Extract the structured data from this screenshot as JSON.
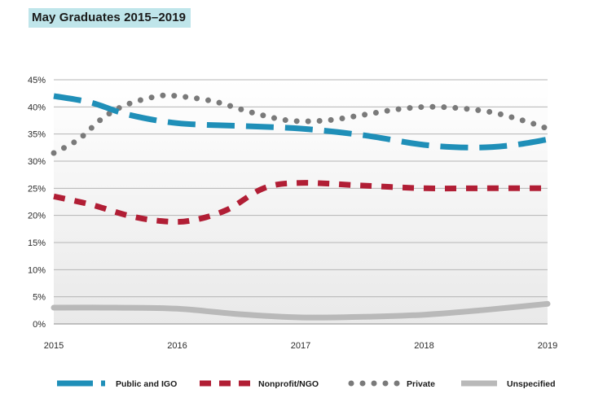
{
  "chart_data": {
    "type": "line",
    "title": "May Graduates 2015–2019",
    "xlabel": "",
    "ylabel": "",
    "x": [
      2015,
      2016,
      2017,
      2018,
      2019
    ],
    "x_tick_labels": [
      "2015",
      "2016",
      "2017",
      "2018",
      "2019"
    ],
    "y_tick_labels": [
      "0%",
      "5%",
      "10%",
      "15%",
      "20%",
      "25%",
      "30%",
      "35%",
      "40%",
      "45%"
    ],
    "ylim": [
      0,
      45
    ],
    "series": [
      {
        "name": "Public and IGO",
        "color": "#1f8fb8",
        "style": "long-dash",
        "x": [
          2015,
          2015.3,
          2015.6,
          2016,
          2016.5,
          2017,
          2017.5,
          2018,
          2018.4,
          2018.7,
          2019
        ],
        "values": [
          42,
          40.8,
          38.6,
          37,
          36.5,
          36,
          34.8,
          33,
          32.5,
          32.9,
          34
        ]
      },
      {
        "name": "Nonprofit/NGO",
        "color": "#b11e35",
        "style": "short-dash",
        "x": [
          2015,
          2015.3,
          2015.6,
          2015.85,
          2016.1,
          2016.4,
          2016.7,
          2017,
          2017.5,
          2018,
          2018.5,
          2019
        ],
        "values": [
          23.5,
          22,
          20,
          19,
          19,
          21,
          25,
          26,
          25.5,
          25,
          25,
          25
        ]
      },
      {
        "name": "Private",
        "color": "#7a7a7a",
        "style": "dotted",
        "x": [
          2015,
          2015.2,
          2015.4,
          2015.6,
          2015.85,
          2016,
          2016.3,
          2016.6,
          2016.9,
          2017.2,
          2017.5,
          2017.8,
          2018.1,
          2018.5,
          2018.8,
          2019
        ],
        "values": [
          31.5,
          34,
          38,
          40.5,
          42,
          42,
          41,
          39,
          37.5,
          37.5,
          38.5,
          39.6,
          40,
          39.2,
          37.5,
          36
        ]
      },
      {
        "name": "Unspecified",
        "color": "#b9b9b9",
        "style": "solid",
        "x": [
          2015,
          2015.5,
          2016,
          2016.5,
          2017,
          2017.5,
          2018,
          2018.5,
          2019
        ],
        "values": [
          3,
          3,
          2.8,
          1.8,
          1.2,
          1.3,
          1.7,
          2.6,
          3.7
        ]
      }
    ],
    "legend": [
      "Public and IGO",
      "Nonprofit/NGO",
      "Private",
      "Unspecified"
    ],
    "legend_position": "bottom",
    "grid": true
  }
}
